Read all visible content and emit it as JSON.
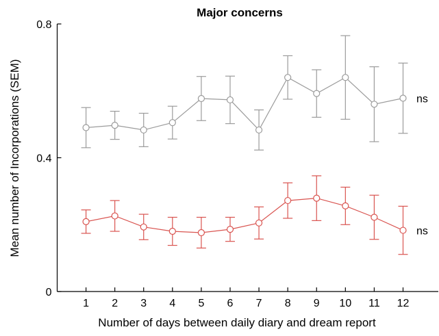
{
  "chart_data": {
    "type": "line",
    "title": "Major concerns",
    "xlabel": "Number of days between daily diary and dream report",
    "ylabel": "Mean number of Incorporations (SEM)",
    "x": [
      1,
      2,
      3,
      4,
      5,
      6,
      7,
      8,
      9,
      10,
      11,
      12
    ],
    "xlim": [
      0,
      13.2
    ],
    "ylim": [
      0,
      0.8
    ],
    "yticks": [
      "0",
      "0.4",
      "0.8"
    ],
    "grid": false,
    "series": [
      {
        "color": "#9b9b9b",
        "marker": "open-circle",
        "values": [
          0.49,
          0.497,
          0.483,
          0.505,
          0.577,
          0.573,
          0.483,
          0.64,
          0.592,
          0.64,
          0.56,
          0.578
        ],
        "sem": [
          0.06,
          0.042,
          0.05,
          0.049,
          0.066,
          0.071,
          0.06,
          0.065,
          0.071,
          0.125,
          0.112,
          0.105
        ],
        "annotation": "ns"
      },
      {
        "color": "#d9534f",
        "marker": "open-circle",
        "values": [
          0.209,
          0.226,
          0.193,
          0.18,
          0.176,
          0.186,
          0.205,
          0.272,
          0.279,
          0.256,
          0.222,
          0.183
        ],
        "sem": [
          0.035,
          0.046,
          0.038,
          0.042,
          0.046,
          0.036,
          0.048,
          0.053,
          0.067,
          0.056,
          0.066,
          0.072
        ],
        "annotation": "ns"
      }
    ]
  }
}
